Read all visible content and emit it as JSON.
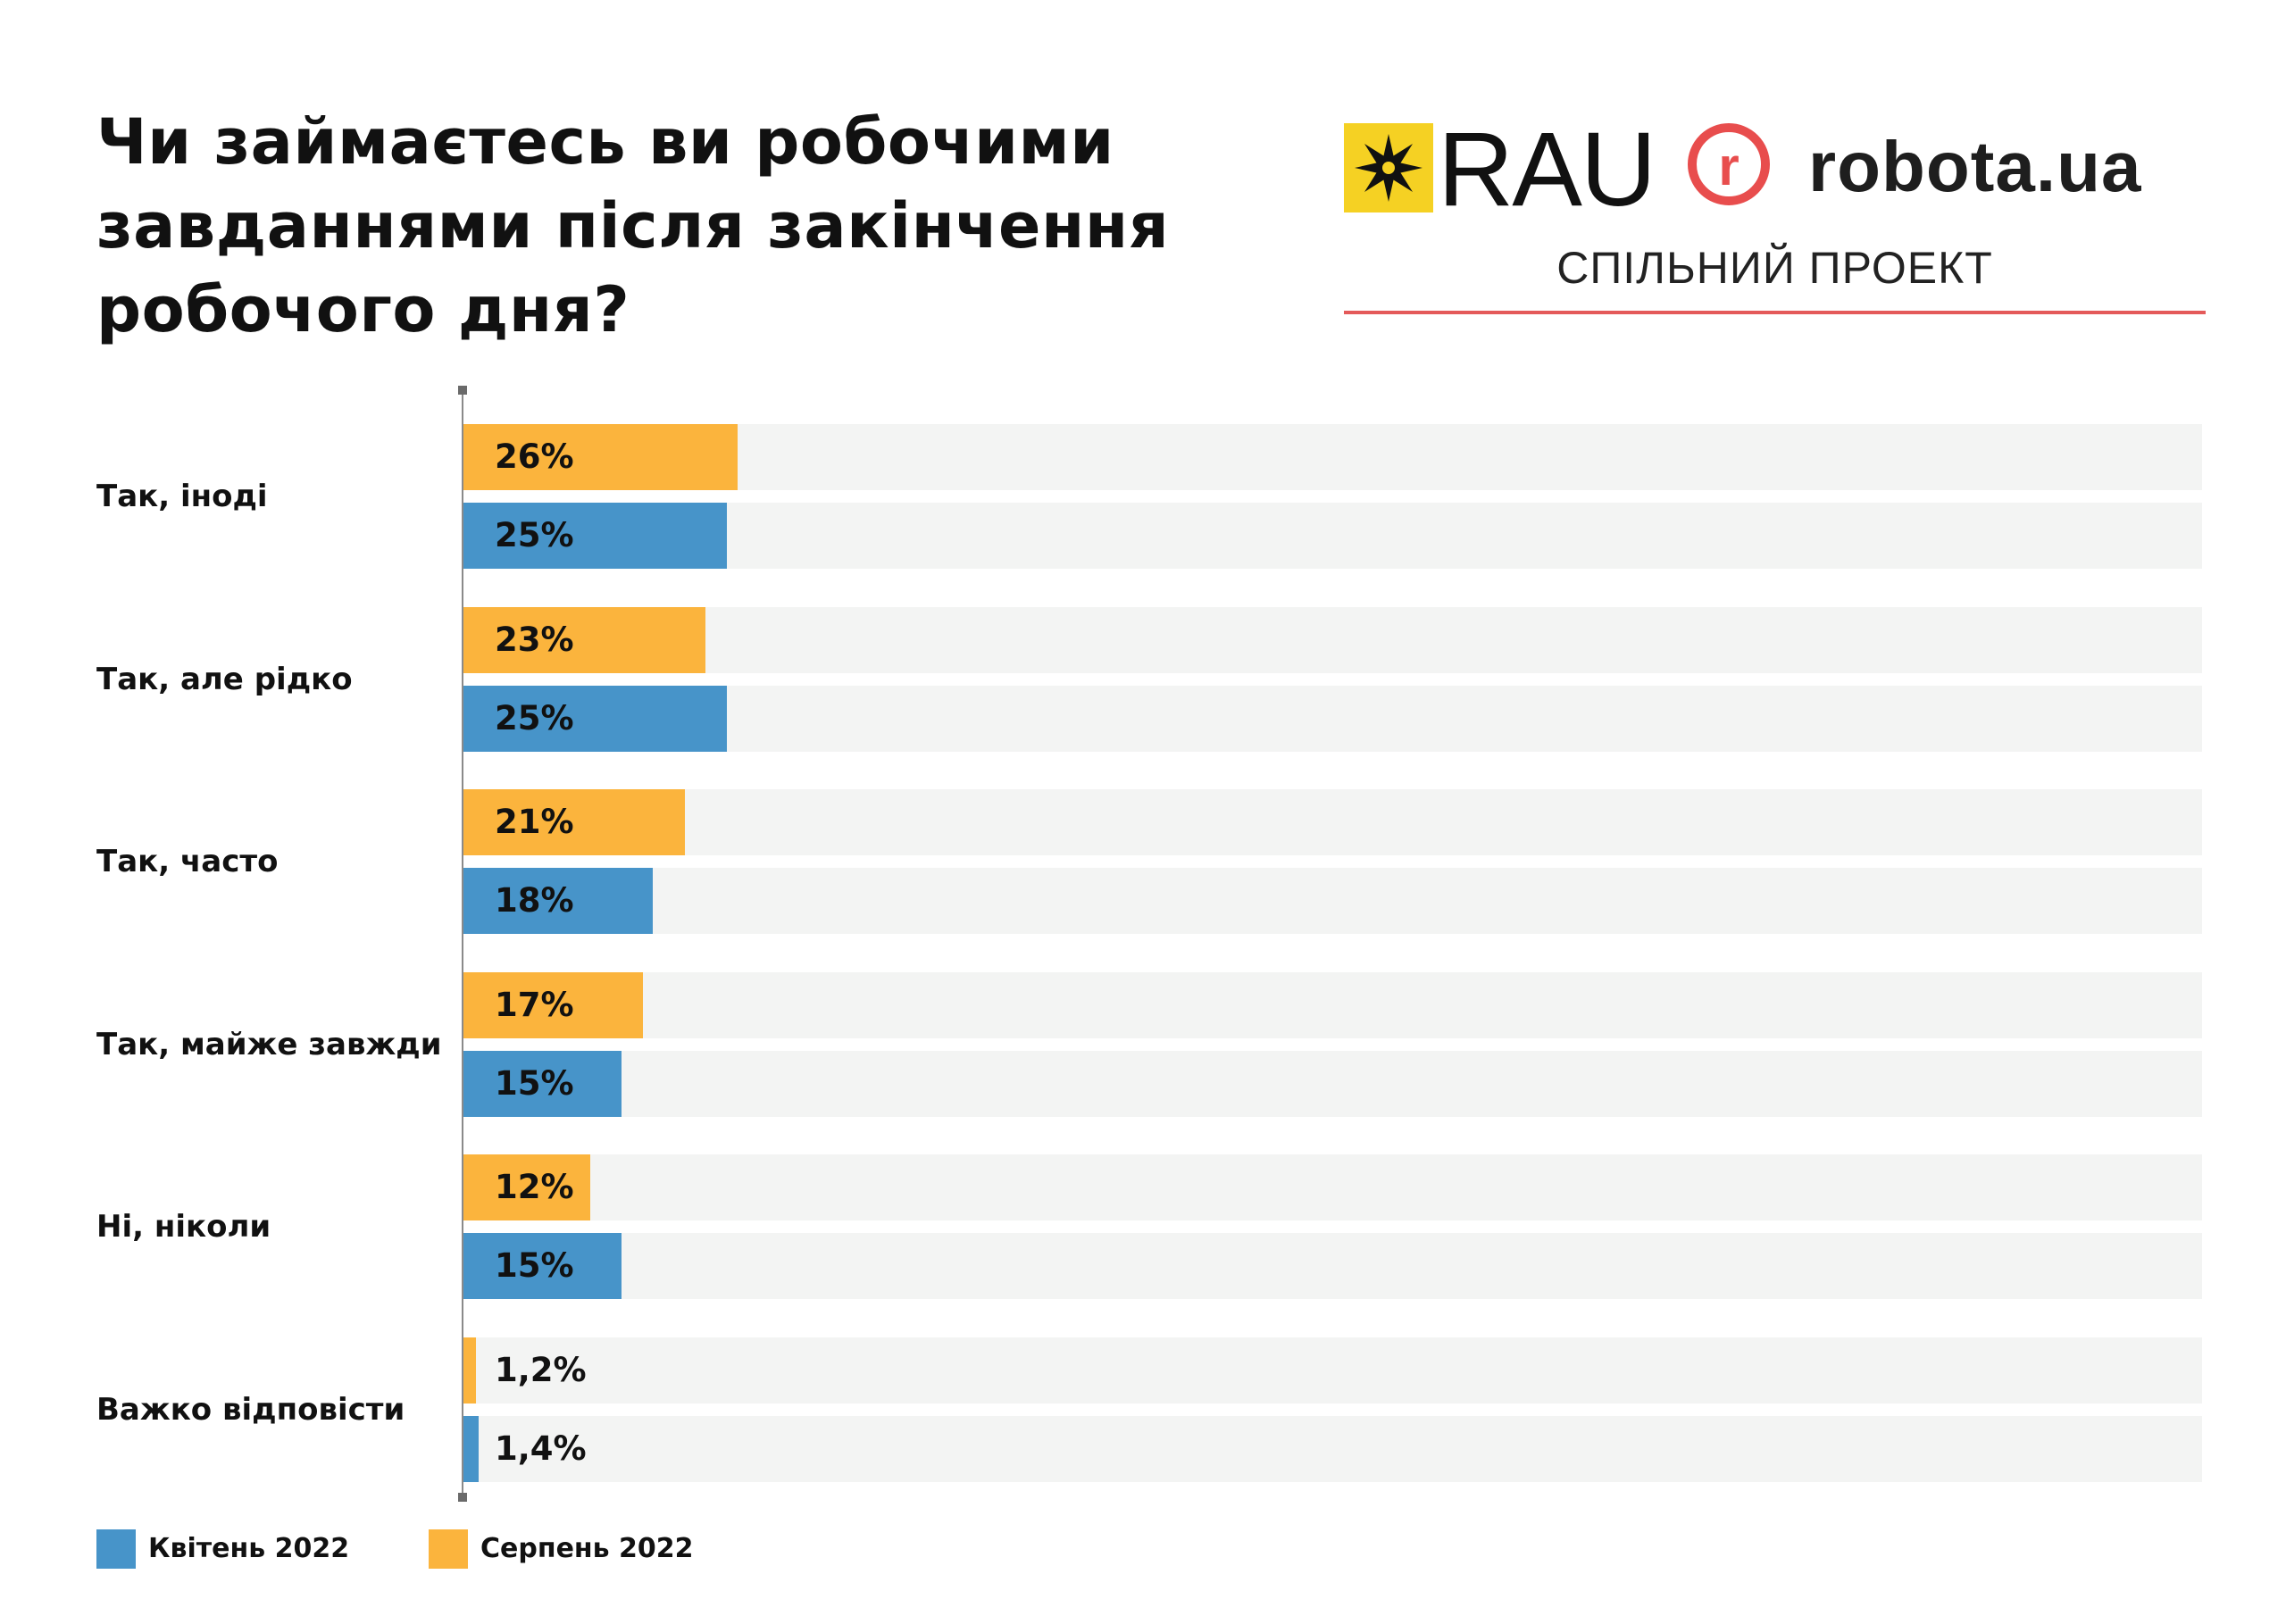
{
  "title_lines": [
    "Чи займаєтесь ви робочими",
    "завданнями після закінчення",
    "робочого дня?"
  ],
  "logos": {
    "rau_text": "RAU",
    "robota_mark": "r",
    "robota_text": "robota.ua",
    "joint_project": "СПІЛЬНИЙ ПРОЕКТ"
  },
  "colors": {
    "april": "#4794c9",
    "august": "#fbb43d",
    "track": "#f3f4f3",
    "accent_red": "#e84d4d",
    "rau_yellow": "#f5d123"
  },
  "chart_data": {
    "type": "bar",
    "orientation": "horizontal",
    "title": "Чи займаєтесь ви робочими завданнями після закінчення робочого дня?",
    "categories": [
      "Так, іноді",
      "Так, але рідко",
      "Так, часто",
      "Так, майже завжди",
      "Ні, ніколи",
      "Важко відповісти"
    ],
    "series": [
      {
        "name": "Серпень 2022",
        "color": "#fbb43d",
        "values": [
          26,
          23,
          21,
          17,
          12,
          1.2
        ],
        "labels": [
          "26%",
          "23%",
          "21%",
          "17%",
          "12%",
          "1,2%"
        ]
      },
      {
        "name": "Квітень 2022",
        "color": "#4794c9",
        "values": [
          25,
          25,
          18,
          15,
          15,
          1.4
        ],
        "labels": [
          "25%",
          "25%",
          "18%",
          "15%",
          "15%",
          "1,4%"
        ]
      }
    ],
    "xlim": [
      0,
      100
    ],
    "legend": [
      {
        "name": "Квітень 2022",
        "color": "#4794c9"
      },
      {
        "name": "Серпень 2022",
        "color": "#fbb43d"
      }
    ],
    "legend_position": "bottom-left",
    "grid": false
  }
}
